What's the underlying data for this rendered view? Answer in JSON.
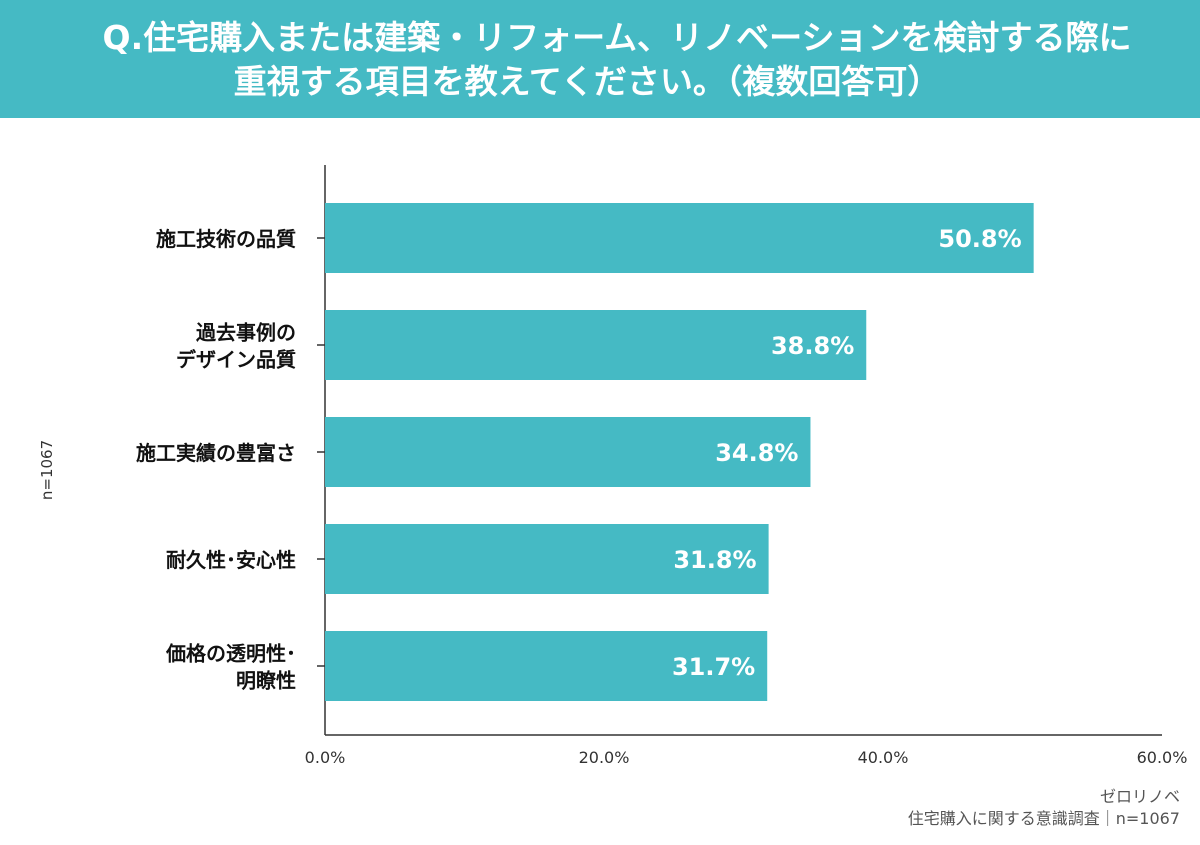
{
  "header": {
    "title_line1": "Q.住宅購入または建築・リフォーム、リノベーションを検討する際に",
    "title_line2": "重視する項目を教えてください。（複数回答可）"
  },
  "sample_label": "n=1067",
  "source": {
    "line1": "ゼロリノベ",
    "line2": "住宅購入に関する意識調査｜n=1067"
  },
  "colors": {
    "bar": "#45BAC4",
    "header": "#45BAC4",
    "axis": "#333333"
  },
  "chart_data": {
    "type": "bar",
    "orientation": "horizontal",
    "categories": [
      [
        "施工技術の品質"
      ],
      [
        "過去事例の",
        "デザイン品質"
      ],
      [
        "施工実績の豊富さ"
      ],
      [
        "耐久性･安心性"
      ],
      [
        "価格の透明性･",
        "明瞭性"
      ]
    ],
    "values": [
      50.8,
      38.8,
      34.8,
      31.8,
      31.7
    ],
    "data_labels": [
      "50.8%",
      "38.8%",
      "34.8%",
      "31.8%",
      "31.7%"
    ],
    "xlim": [
      0,
      60
    ],
    "x_ticks": [
      0,
      20,
      40,
      60
    ],
    "x_tick_labels": [
      "0.0%",
      "20.0%",
      "40.0%",
      "60.0%"
    ],
    "grid": false,
    "legend": "none"
  }
}
